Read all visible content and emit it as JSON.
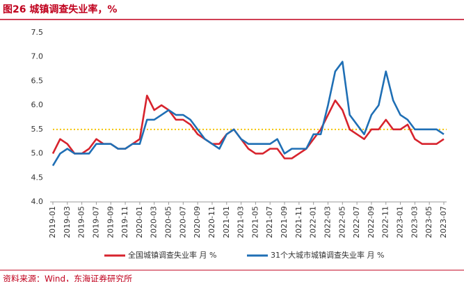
{
  "chart_data": {
    "type": "line",
    "title": "图26  城镇调查失业率，%",
    "source": "资料来源：Wind，东海证券研究所",
    "categories": [
      "2019-01",
      null,
      "2019-03",
      null,
      "2019-05",
      null,
      "2019-07",
      null,
      "2019-09",
      null,
      "2019-11",
      null,
      "2020-01",
      null,
      "2020-03",
      null,
      "2020-05",
      null,
      "2020-07",
      null,
      "2020-09",
      null,
      "2020-11",
      null,
      "2021-01",
      null,
      "2021-03",
      null,
      "2021-05",
      null,
      "2021-07",
      null,
      "2021-09",
      null,
      "2021-11",
      null,
      "2022-01",
      null,
      "2022-03",
      null,
      "2022-05",
      null,
      "2022-07",
      null,
      "2022-09",
      null,
      "2022-11",
      null,
      "2023-01",
      null,
      "2023-03",
      null,
      "2023-05",
      null,
      "2023-07"
    ],
    "series": [
      {
        "name": "全国城镇调查失业率 月 %",
        "color": "#d7232d",
        "values": [
          5.0,
          5.3,
          5.2,
          5.0,
          5.0,
          5.1,
          5.3,
          5.2,
          5.2,
          5.1,
          5.1,
          5.2,
          5.3,
          6.2,
          5.9,
          6.0,
          5.9,
          5.7,
          5.7,
          5.6,
          5.4,
          5.3,
          5.2,
          5.2,
          5.4,
          5.5,
          5.3,
          5.1,
          5.0,
          5.0,
          5.1,
          5.1,
          4.9,
          4.9,
          5.0,
          5.1,
          5.3,
          5.5,
          5.8,
          6.1,
          5.9,
          5.5,
          5.4,
          5.3,
          5.5,
          5.5,
          5.7,
          5.5,
          5.5,
          5.6,
          5.3,
          5.2,
          5.2,
          5.2,
          5.3
        ]
      },
      {
        "name": "31个大城市城镇调查失业率 月 %",
        "color": "#1f6fb5",
        "values": [
          4.75,
          5.0,
          5.1,
          5.0,
          5.0,
          5.0,
          5.2,
          5.2,
          5.2,
          5.1,
          5.1,
          5.2,
          5.2,
          5.7,
          5.7,
          5.8,
          5.9,
          5.8,
          5.8,
          5.7,
          5.5,
          5.3,
          5.2,
          5.1,
          5.4,
          5.5,
          5.3,
          5.2,
          5.2,
          5.2,
          5.2,
          5.3,
          5.0,
          5.1,
          5.1,
          5.1,
          5.4,
          5.4,
          6.0,
          6.7,
          6.9,
          5.8,
          5.6,
          5.4,
          5.8,
          6.0,
          6.7,
          6.1,
          5.8,
          5.7,
          5.5,
          5.5,
          5.5,
          5.5,
          5.4
        ]
      }
    ],
    "reference_line": {
      "value": 5.5,
      "color": "#f5c400"
    },
    "ylim": [
      4.0,
      7.5
    ],
    "yticks": [
      {
        "value": 4.0,
        "label": "4.0"
      },
      4.5,
      {
        "value": 5.0,
        "label": "5.0"
      },
      5.5,
      {
        "value": 6.0,
        "label": "6.0"
      },
      6.5,
      {
        "value": 7.0,
        "label": "7.0"
      },
      7.5
    ],
    "legend": "bottom"
  }
}
